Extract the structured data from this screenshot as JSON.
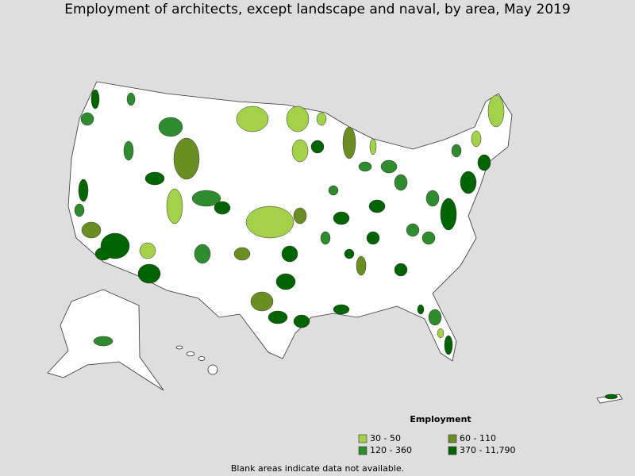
{
  "title": "Employment of architects, except landscape and naval, by area, May 2019",
  "legend": {
    "title": "Employment",
    "items": [
      {
        "label": "30 - 50",
        "color": "#a3d149"
      },
      {
        "label": "60 - 110",
        "color": "#6b8e23"
      },
      {
        "label": "120 - 360",
        "color": "#2e8b2e"
      },
      {
        "label": "370 - 11,790",
        "color": "#006400"
      }
    ]
  },
  "note": "Blank areas indicate data not available."
}
